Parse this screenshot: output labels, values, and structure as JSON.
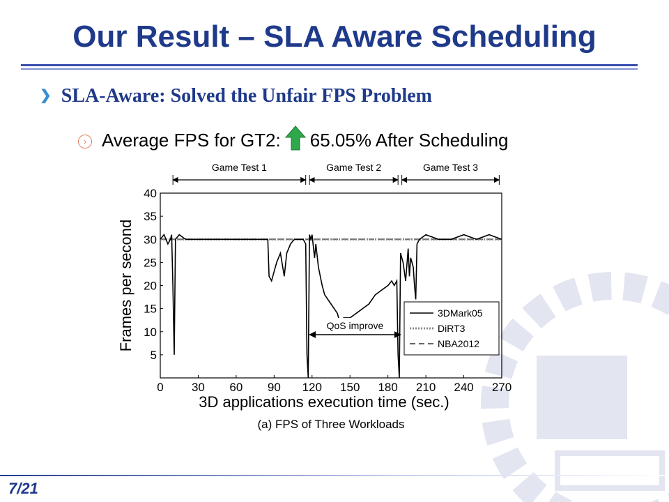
{
  "slide": {
    "title": "Our Result – SLA Aware Scheduling",
    "bullet1": "SLA-Aware: Solved the Unfair FPS Problem",
    "bullet2_prefix": "Average FPS for GT2:",
    "bullet2_suffix": "65.05% After Scheduling",
    "arrow_icon": "up-arrow-icon",
    "arrow_color": "#2ea84a",
    "page_number": "7/21",
    "accent": "#1f3a8a"
  },
  "chart_data": {
    "type": "line",
    "caption": "(a) FPS of Three Workloads",
    "xlabel": "3D applications execution time (sec.)",
    "ylabel": "Frames per second",
    "xlim": [
      0,
      270
    ],
    "ylim": [
      0,
      40
    ],
    "xticks": [
      0,
      30,
      60,
      90,
      120,
      150,
      180,
      210,
      240,
      270
    ],
    "yticks": [
      5,
      10,
      15,
      20,
      25,
      30,
      35,
      40
    ],
    "grid": false,
    "legend_position": "bottom-right",
    "phases": [
      {
        "label": "Game Test 1",
        "start": 10,
        "end": 115
      },
      {
        "label": "Game Test 2",
        "start": 118,
        "end": 188
      },
      {
        "label": "Game Test 3",
        "start": 191,
        "end": 268
      }
    ],
    "annotation": {
      "label": "QoS improve",
      "start": 118,
      "end": 190
    },
    "series": [
      {
        "name": "3DMark05",
        "style": "solid",
        "x": [
          0,
          3,
          6,
          8,
          9,
          10,
          11,
          12,
          15,
          20,
          30,
          40,
          50,
          60,
          70,
          80,
          85,
          86,
          88,
          90,
          92,
          95,
          98,
          100,
          103,
          106,
          110,
          113,
          115,
          116,
          117,
          118,
          119,
          120,
          122,
          123,
          125,
          128,
          130,
          135,
          140,
          142,
          145,
          150,
          155,
          160,
          165,
          170,
          175,
          180,
          183,
          185,
          187,
          188,
          189,
          190,
          191,
          192,
          194,
          196,
          197,
          198,
          200,
          201,
          202,
          203,
          205,
          210,
          220,
          230,
          240,
          250,
          260,
          270
        ],
        "y": [
          30,
          31,
          29,
          30,
          31,
          20,
          5,
          30,
          31,
          30,
          30,
          30,
          30,
          30,
          30,
          30,
          30,
          22,
          21,
          23,
          25,
          27,
          22,
          27,
          29,
          30,
          30,
          30,
          29,
          5,
          0,
          31,
          30,
          31,
          26,
          29,
          24,
          20,
          18,
          16,
          14,
          12,
          13,
          13,
          14,
          15,
          16,
          18,
          19,
          20,
          21,
          20,
          21,
          5,
          0,
          27,
          26,
          25,
          21,
          28,
          22,
          26,
          24,
          20,
          17,
          29,
          30,
          31,
          30,
          30,
          31,
          30,
          31,
          30
        ]
      },
      {
        "name": "DiRT3",
        "style": "dotted",
        "x": [
          0,
          10,
          20,
          30,
          40,
          50,
          60,
          70,
          80,
          90,
          100,
          110,
          115,
          120,
          130,
          140,
          150,
          160,
          170,
          180,
          190,
          200,
          210,
          220,
          230,
          240,
          250,
          260,
          270
        ],
        "y": [
          30,
          30,
          30,
          30,
          30,
          30,
          30,
          30,
          30,
          30,
          30,
          30,
          30,
          30,
          30,
          30,
          30,
          30,
          30,
          30,
          30,
          30,
          30,
          30,
          30,
          30,
          30,
          30,
          30
        ]
      },
      {
        "name": "NBA2012",
        "style": "dashed",
        "x": [
          0,
          270
        ],
        "y": [
          30,
          30
        ]
      }
    ]
  }
}
